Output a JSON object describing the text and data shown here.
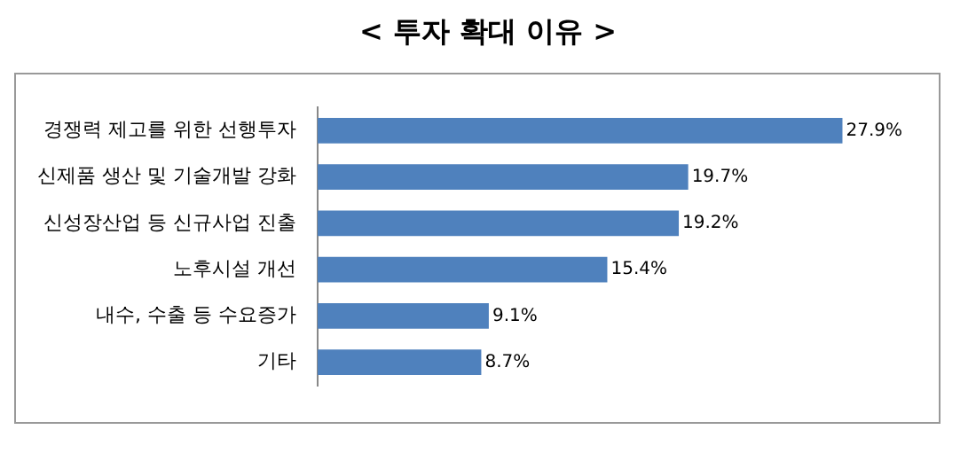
{
  "chart_data": {
    "type": "bar",
    "orientation": "horizontal",
    "title": "< 투자 확대 이유 >",
    "categories": [
      "경쟁력 제고를 위한 선행투자",
      "신제품 생산 및 기술개발 강화",
      "신성장산업 등 신규사업 진출",
      "노후시설 개선",
      "내수, 수출 등 수요증가",
      "기타"
    ],
    "values": [
      27.9,
      19.7,
      19.2,
      15.4,
      9.1,
      8.7
    ],
    "value_labels": [
      "27.9%",
      "19.7%",
      "19.2%",
      "15.4%",
      "9.1%",
      "8.7%"
    ],
    "color": "#4f81bd",
    "legend": false
  }
}
